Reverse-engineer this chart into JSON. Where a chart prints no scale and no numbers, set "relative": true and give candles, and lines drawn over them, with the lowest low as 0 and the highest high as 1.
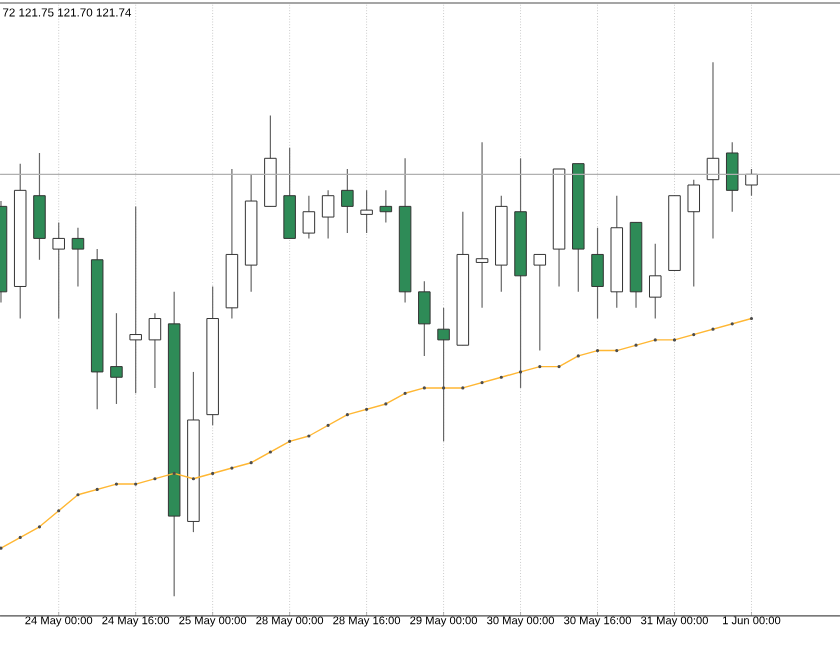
{
  "chart_data": {
    "type": "candlestick",
    "title": "72 121.75 121.70 121.74",
    "relative": true,
    "grid": true,
    "tick_labels": "x",
    "categories": [
      null,
      null,
      null,
      "24 May 00:00",
      null,
      null,
      null,
      "24 May 16:00",
      null,
      null,
      null,
      "25 May 00:00",
      null,
      null,
      null,
      "28 May 00:00",
      null,
      null,
      null,
      "28 May 16:00",
      null,
      null,
      null,
      "29 May 00:00",
      null,
      null,
      null,
      "30 May 00:00",
      null,
      null,
      null,
      "30 May 16:00",
      null,
      null,
      null,
      "31 May 00:00",
      null,
      null,
      null,
      "1 Jun 00:00"
    ],
    "ohlc": [
      [
        0.73,
        0.74,
        0.55,
        0.57
      ],
      [
        0.58,
        0.81,
        0.52,
        0.76
      ],
      [
        0.75,
        0.83,
        0.63,
        0.67
      ],
      [
        0.65,
        0.7,
        0.52,
        0.67
      ],
      [
        0.67,
        0.69,
        0.58,
        0.65
      ],
      [
        0.63,
        0.65,
        0.35,
        0.42
      ],
      [
        0.43,
        0.53,
        0.36,
        0.41
      ],
      [
        0.48,
        0.73,
        0.38,
        0.49
      ],
      [
        0.48,
        0.53,
        0.39,
        0.52
      ],
      [
        0.51,
        0.57,
        0.0,
        0.15
      ],
      [
        0.14,
        0.42,
        0.12,
        0.33
      ],
      [
        0.34,
        0.58,
        0.32,
        0.52
      ],
      [
        0.54,
        0.8,
        0.52,
        0.64
      ],
      [
        0.62,
        0.79,
        0.57,
        0.74
      ],
      [
        0.73,
        0.9,
        0.73,
        0.82
      ],
      [
        0.75,
        0.84,
        0.67,
        0.67
      ],
      [
        0.68,
        0.75,
        0.67,
        0.72
      ],
      [
        0.71,
        0.76,
        0.67,
        0.75
      ],
      [
        0.76,
        0.8,
        0.68,
        0.73
      ],
      [
        0.715,
        0.76,
        0.68,
        0.723
      ],
      [
        0.73,
        0.76,
        0.7,
        0.72
      ],
      [
        0.73,
        0.82,
        0.55,
        0.57
      ],
      [
        0.57,
        0.59,
        0.45,
        0.51
      ],
      [
        0.5,
        0.54,
        0.29,
        0.48
      ],
      [
        0.47,
        0.72,
        0.47,
        0.64
      ],
      [
        0.625,
        0.85,
        0.54,
        0.632
      ],
      [
        0.62,
        0.75,
        0.57,
        0.73
      ],
      [
        0.72,
        0.82,
        0.39,
        0.6
      ],
      [
        0.62,
        0.64,
        0.46,
        0.64
      ],
      [
        0.65,
        0.8,
        0.58,
        0.8
      ],
      [
        0.81,
        0.81,
        0.57,
        0.65
      ],
      [
        0.64,
        0.69,
        0.52,
        0.58
      ],
      [
        0.57,
        0.75,
        0.54,
        0.69
      ],
      [
        0.7,
        0.7,
        0.54,
        0.57
      ],
      [
        0.56,
        0.66,
        0.52,
        0.6
      ],
      [
        0.61,
        0.75,
        0.61,
        0.75
      ],
      [
        0.72,
        0.78,
        0.58,
        0.77
      ],
      [
        0.78,
        1.0,
        0.67,
        0.82
      ],
      [
        0.83,
        0.85,
        0.72,
        0.76
      ],
      [
        0.77,
        0.8,
        0.75,
        0.79
      ]
    ],
    "colors": [
      "#2e8b57",
      "#ffffff",
      "#2e8b57",
      "#ffffff",
      "#2e8b57",
      "#2e8b57",
      "#2e8b57",
      "#ffffff",
      "#ffffff",
      "#2e8b57",
      "#ffffff",
      "#ffffff",
      "#ffffff",
      "#ffffff",
      "#ffffff",
      "#2e8b57",
      "#ffffff",
      "#ffffff",
      "#2e8b57",
      "#ffffff",
      "#2e8b57",
      "#2e8b57",
      "#2e8b57",
      "#2e8b57",
      "#ffffff",
      "#ffffff",
      "#ffffff",
      "#2e8b57",
      "#ffffff",
      "#ffffff",
      "#2e8b57",
      "#2e8b57",
      "#ffffff",
      "#2e8b57",
      "#ffffff",
      "#ffffff",
      "#ffffff",
      "#ffffff",
      "#2e8b57",
      "#ffffff"
    ],
    "series": [
      {
        "type": "line",
        "color": "#ffb733",
        "marker": "circle",
        "values": [
          0.09,
          0.11,
          0.13,
          0.16,
          0.19,
          0.2,
          0.21,
          0.21,
          0.22,
          0.23,
          0.22,
          0.23,
          0.24,
          0.25,
          0.27,
          0.29,
          0.3,
          0.32,
          0.34,
          0.35,
          0.36,
          0.38,
          0.39,
          0.39,
          0.39,
          0.4,
          0.41,
          0.42,
          0.43,
          0.43,
          0.45,
          0.46,
          0.46,
          0.47,
          0.48,
          0.48,
          0.49,
          0.5,
          0.51,
          0.52
        ]
      }
    ],
    "ref_lines": [
      {
        "axis": "y",
        "value": 0.79,
        "color": "#b0b0b0"
      }
    ]
  }
}
